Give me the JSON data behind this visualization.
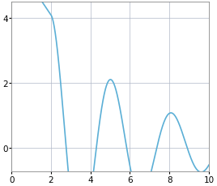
{
  "xlim": [
    0,
    10
  ],
  "ylim": [
    -0.75,
    4.5
  ],
  "xticks": [
    0,
    2,
    4,
    6,
    8,
    10
  ],
  "yticks": [
    0,
    2,
    4
  ],
  "line_color": "#5bafd6",
  "line_width": 1.2,
  "background_color": "#ffffff",
  "grid_color": "#b0b8c8",
  "data_start_time": 2.0,
  "t_end": 10.0,
  "amplitude": 4.1,
  "decay": 0.22,
  "freq": 2.05,
  "phase": 0.0
}
